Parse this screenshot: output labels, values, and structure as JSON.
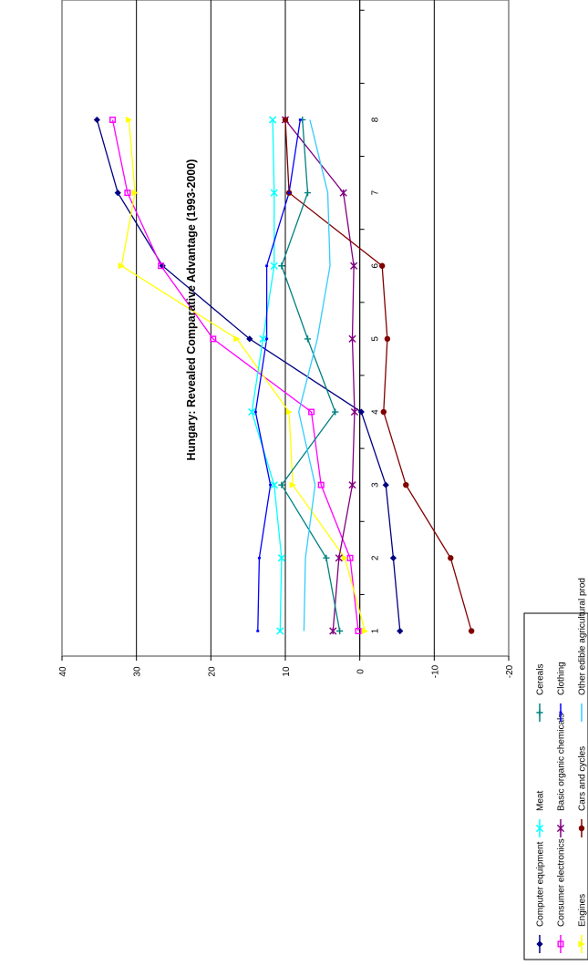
{
  "chart_data": {
    "type": "line",
    "title": "Hungary: Revealed Comparative Advantage (1993-2000)",
    "xlabel": "",
    "ylabel": "",
    "x": [
      1,
      2,
      3,
      4,
      5,
      6,
      7,
      8
    ],
    "x_tick_labels": [
      "1",
      "2",
      "3",
      "4",
      "5",
      "6",
      "7",
      "8"
    ],
    "ylim": [
      -20,
      40
    ],
    "y_ticks": [
      -20,
      -10,
      0,
      10,
      20,
      30,
      40
    ],
    "y_tick_labels": [
      "-20",
      "-10",
      "0",
      "10",
      "20",
      "30",
      "40"
    ],
    "grid": true,
    "legend_placement": "bottom",
    "series": [
      {
        "name": "Computer equipment",
        "color": "#000080",
        "marker": "diamond",
        "values": [
          -5.4,
          -4.5,
          -3.5,
          -0.2,
          14.8,
          26.5,
          32.5,
          35.3
        ]
      },
      {
        "name": "Consumer electronics",
        "color": "#ff00ff",
        "marker": "square",
        "values": [
          0.2,
          1.3,
          5.2,
          6.5,
          19.7,
          26.7,
          31.2,
          33.2
        ]
      },
      {
        "name": "Engines",
        "color": "#ffff00",
        "marker": "triangle",
        "values": [
          -0.7,
          2.0,
          9.0,
          9.5,
          16.5,
          32.0,
          30.2,
          31.0
        ]
      },
      {
        "name": "Meat",
        "color": "#00ffff",
        "marker": "x",
        "values": [
          10.7,
          10.5,
          11.5,
          14.5,
          13.0,
          11.5,
          11.5,
          11.7
        ]
      },
      {
        "name": "Basic organic chemicals",
        "color": "#800080",
        "marker": "star",
        "values": [
          3.6,
          2.8,
          1.0,
          0.7,
          1.0,
          0.8,
          2.2,
          10.0
        ]
      },
      {
        "name": "Cars and cycles",
        "color": "#800000",
        "marker": "circle",
        "values": [
          -15.0,
          -12.2,
          -6.2,
          -3.2,
          -3.7,
          -3.0,
          9.5,
          10.0
        ]
      },
      {
        "name": "Cereals",
        "color": "#008080",
        "marker": "plus",
        "values": [
          2.7,
          4.5,
          10.5,
          3.3,
          7.0,
          10.5,
          7.0,
          7.7
        ]
      },
      {
        "name": "Clothing",
        "color": "#0000ff",
        "marker": "dash",
        "values": [
          13.7,
          13.5,
          12.0,
          14.0,
          12.5,
          12.5,
          9.5,
          8.0
        ]
      },
      {
        "name": "Other edible agricultural prod",
        "color": "#33ccff",
        "marker": "none",
        "values": [
          7.5,
          7.3,
          6.0,
          8.2,
          5.7,
          4.0,
          4.3,
          6.7
        ]
      }
    ]
  }
}
